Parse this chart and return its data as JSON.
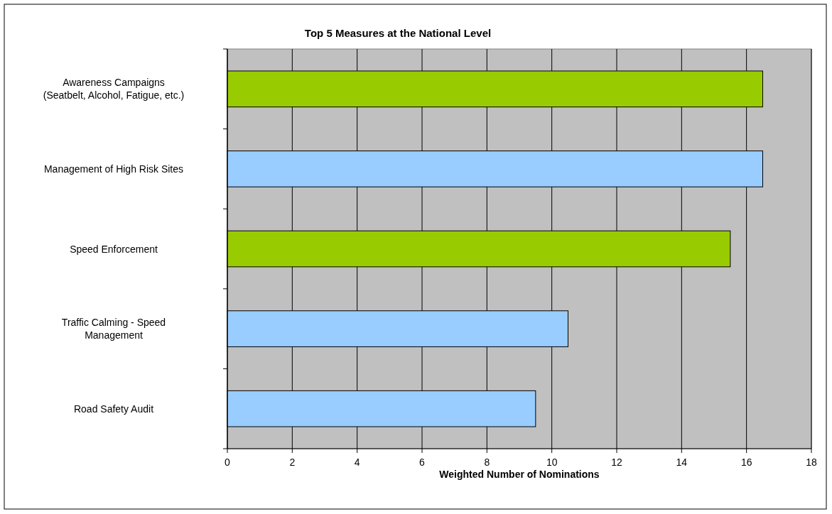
{
  "chart_data": {
    "type": "bar",
    "orientation": "horizontal",
    "title": "Top 5 Measures at the National Level",
    "xlabel": "Weighted Number of Nominations",
    "categories": [
      "Awareness Campaigns\n(Seatbelt, Alcohol, Fatigue, etc.)",
      "Management of High Risk Sites",
      "Speed Enforcement",
      "Traffic Calming - Speed\nManagement",
      "Road Safety Audit"
    ],
    "values": [
      16.5,
      16.5,
      15.5,
      10.5,
      9.5
    ],
    "colors": [
      "#99cc00",
      "#99ccff",
      "#99cc00",
      "#99ccff",
      "#99ccff"
    ],
    "xlim": [
      0,
      18
    ],
    "xticks": [
      0,
      2,
      4,
      6,
      8,
      10,
      12,
      14,
      16,
      18
    ],
    "grid": "x"
  }
}
